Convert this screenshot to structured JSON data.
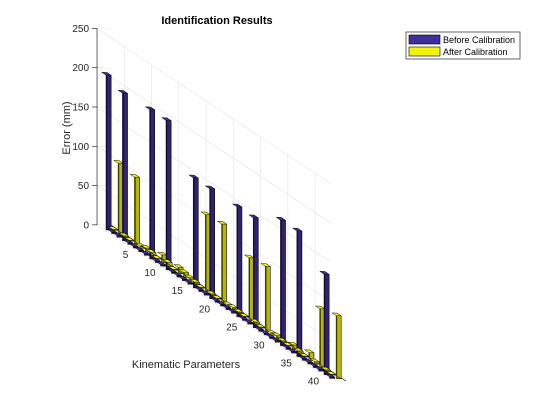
{
  "chart_data": {
    "type": "bar",
    "title": "Identification Results",
    "xlabel": "Kinematic Parameters",
    "ylabel": "Error (mm)",
    "ylim": [
      0,
      250
    ],
    "yticks": [
      0,
      50,
      100,
      150,
      200,
      250
    ],
    "xticks": [
      5,
      10,
      15,
      20,
      25,
      30,
      35,
      40
    ],
    "xlim": [
      0,
      42
    ],
    "projection": "3-D perspective (bar3)",
    "grid": true,
    "legend_position": "top-right",
    "categories": [
      1,
      2,
      3,
      4,
      5,
      6,
      7,
      8,
      9,
      10,
      11,
      12,
      13,
      14,
      15,
      16,
      17,
      18,
      19,
      20,
      21,
      22,
      23,
      24,
      25,
      26,
      27,
      28,
      29,
      30,
      31,
      32,
      33,
      34,
      35,
      36,
      37,
      38,
      39,
      40,
      41,
      42
    ],
    "series": [
      {
        "name": "Before Calibration",
        "color": "#3f2f9a",
        "values": [
          197,
          2,
          2,
          188,
          2,
          2,
          2,
          2,
          190,
          2,
          2,
          190,
          2,
          2,
          2,
          2,
          140,
          2,
          2,
          140,
          2,
          2,
          2,
          2,
          140,
          2,
          2,
          140,
          2,
          2,
          2,
          2,
          160,
          2,
          2,
          160,
          2,
          2,
          2,
          2,
          128,
          2
        ]
      },
      {
        "name": "After Calibration",
        "color": "#f2f20c",
        "values": [
          1,
          90,
          2,
          1,
          86,
          3,
          5,
          4,
          1,
          10,
          5,
          1,
          8,
          6,
          4,
          3,
          1,
          98,
          2,
          1,
          100,
          2,
          3,
          2,
          1,
          80,
          3,
          1,
          83,
          3,
          4,
          2,
          1,
          6,
          3,
          1,
          10,
          3,
          75,
          2,
          1,
          80
        ]
      }
    ]
  },
  "colors": {
    "axes_background": "#ffffff",
    "grid": "#e4e4e4",
    "axis": "#262626",
    "before": "#3f2f9a",
    "after": "#f2f20c"
  }
}
